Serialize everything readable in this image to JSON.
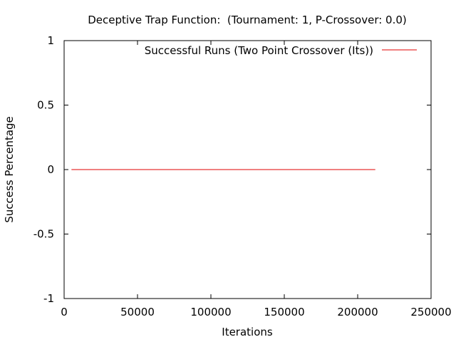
{
  "chart_data": {
    "type": "line",
    "title": "Deceptive Trap Function:  (Tournament: 1, P-Crossover: 0.0)",
    "xlabel": "Iterations",
    "ylabel": "Success Percentage",
    "xlim": [
      0,
      250000
    ],
    "ylim": [
      -1,
      1
    ],
    "xticks": [
      0,
      50000,
      100000,
      150000,
      200000,
      250000
    ],
    "xtick_labels": [
      "0",
      "50000",
      "100000",
      "150000",
      "200000",
      "250000"
    ],
    "yticks": [
      1,
      0.5,
      0,
      -0.5,
      -1
    ],
    "ytick_labels": [
      "1",
      "0.5",
      "0",
      "-0.5",
      "-1"
    ],
    "grid": false,
    "legend_position": "top-right",
    "series": [
      {
        "name": "Successful Runs (Two Point Crossover (Its))",
        "color": "#e00000",
        "x": [
          5000,
          212000
        ],
        "y": [
          0,
          0
        ]
      }
    ]
  }
}
